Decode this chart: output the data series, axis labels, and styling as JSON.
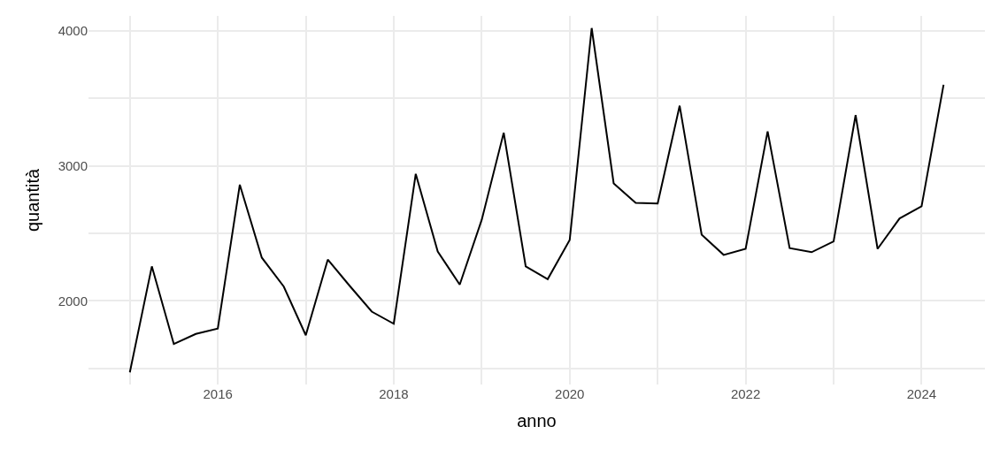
{
  "chart_data": {
    "type": "line",
    "xlabel": "anno",
    "ylabel": "quantità",
    "x": [
      2015.0,
      2015.25,
      2015.5,
      2015.75,
      2016.0,
      2016.25,
      2016.5,
      2016.75,
      2017.0,
      2017.25,
      2017.5,
      2017.75,
      2018.0,
      2018.25,
      2018.5,
      2018.75,
      2019.0,
      2019.25,
      2019.5,
      2019.75,
      2020.0,
      2020.25,
      2020.5,
      2020.75,
      2021.0,
      2021.25,
      2021.5,
      2021.75,
      2022.0,
      2022.25,
      2022.5,
      2022.75,
      2023.0,
      2023.25,
      2023.5,
      2023.75,
      2024.0,
      2024.25
    ],
    "series": [
      {
        "color": "#000000",
        "values": [
          1470,
          2255,
          1680,
          1755,
          1795,
          2860,
          2320,
          2105,
          1745,
          2305,
          2110,
          1920,
          1830,
          2940,
          2365,
          2120,
          2600,
          3245,
          2255,
          2160,
          2450,
          4020,
          2870,
          2725,
          2720,
          3445,
          2490,
          2340,
          2385,
          3255,
          2390,
          2360,
          2440,
          3375,
          2385,
          2610,
          2700,
          3600
        ]
      }
    ],
    "xlim": [
      2014.53,
      2024.72
    ],
    "ylim": [
      1380,
      4110
    ],
    "xticks": [
      {
        "value": 2015,
        "label": null
      },
      2016,
      {
        "value": 2017,
        "label": null
      },
      2018,
      {
        "value": 2019,
        "label": null
      },
      2020,
      {
        "value": 2021,
        "label": null
      },
      2022,
      {
        "value": 2023,
        "label": null
      },
      2024
    ],
    "yticks": [
      {
        "value": 1500,
        "label": null
      },
      2000,
      {
        "value": 2500,
        "label": null
      },
      3000,
      {
        "value": 3500,
        "label": null
      },
      4000
    ],
    "grid": true,
    "marker": "none",
    "line_style": "solid"
  }
}
